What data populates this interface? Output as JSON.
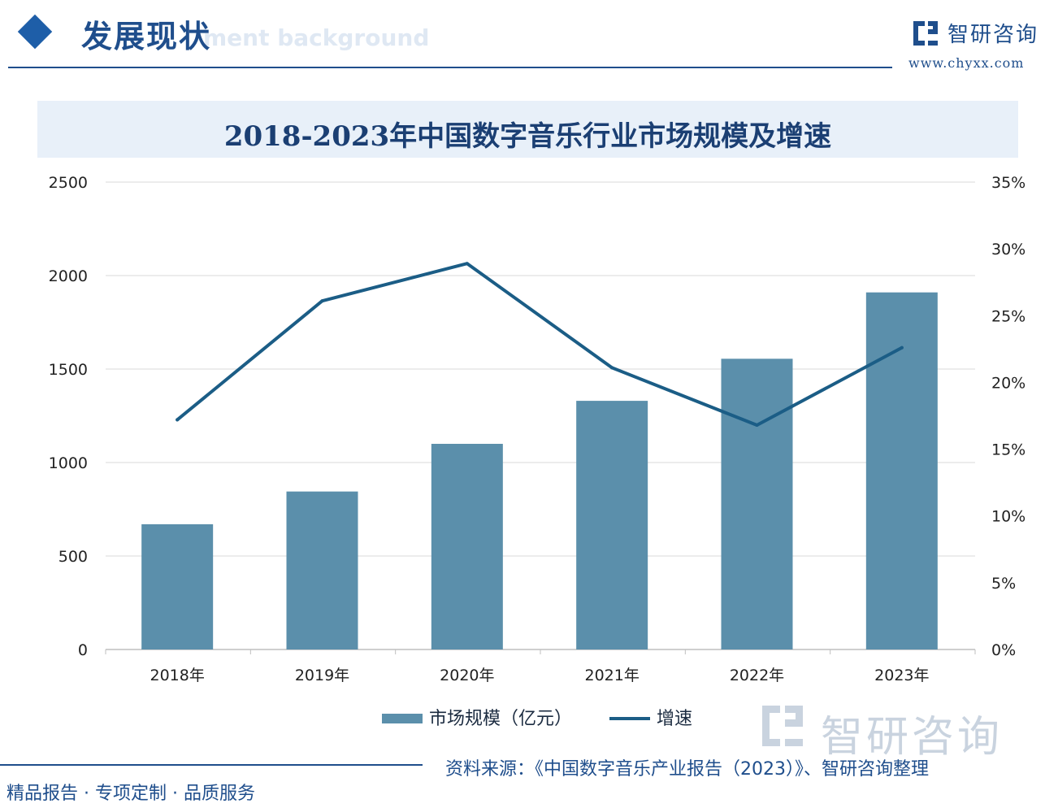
{
  "header": {
    "section_title": "发展现状",
    "section_subtitle": "ment background",
    "brand_name": "智研咨询",
    "brand_url": "www.chyxx.com"
  },
  "chart_data": {
    "type": "bar",
    "title": "2018-2023年中国数字音乐行业市场规模及增速",
    "categories": [
      "2018年",
      "2019年",
      "2020年",
      "2021年",
      "2022年",
      "2023年"
    ],
    "series": [
      {
        "name": "市场规模（亿元）",
        "type": "bar",
        "axis": "left",
        "values": [
          670,
          845,
          1100,
          1330,
          1555,
          1910
        ]
      },
      {
        "name": "增速",
        "type": "line",
        "axis": "right",
        "values": [
          17.2,
          26.1,
          28.9,
          21.1,
          16.8,
          22.6
        ]
      }
    ],
    "y_left": {
      "ylim": [
        0,
        2500
      ],
      "ticks": [
        "0",
        "500",
        "1000",
        "1500",
        "2000",
        "2500"
      ],
      "tick_values": [
        0,
        500,
        1000,
        1500,
        2000,
        2500
      ]
    },
    "y_right": {
      "ylim": [
        0,
        35
      ],
      "ticks": [
        "0%",
        "5%",
        "10%",
        "15%",
        "20%",
        "25%",
        "30%",
        "35%"
      ],
      "tick_values": [
        0,
        5,
        10,
        15,
        20,
        25,
        30,
        35
      ]
    },
    "grid": true,
    "legend_position": "bottom-center",
    "colors": {
      "bar": "#5b8fab",
      "line": "#1b5d86",
      "grid": "#d9d9d9"
    }
  },
  "legend": {
    "bar_label": "市场规模（亿元）",
    "line_label": "增速"
  },
  "watermark": {
    "text": "智研咨询"
  },
  "footer": {
    "source": "资料来源：《中国数字音乐产业报告（2023）》、智研咨询整理",
    "slogan": "精品报告 · 专项定制 · 品质服务"
  }
}
